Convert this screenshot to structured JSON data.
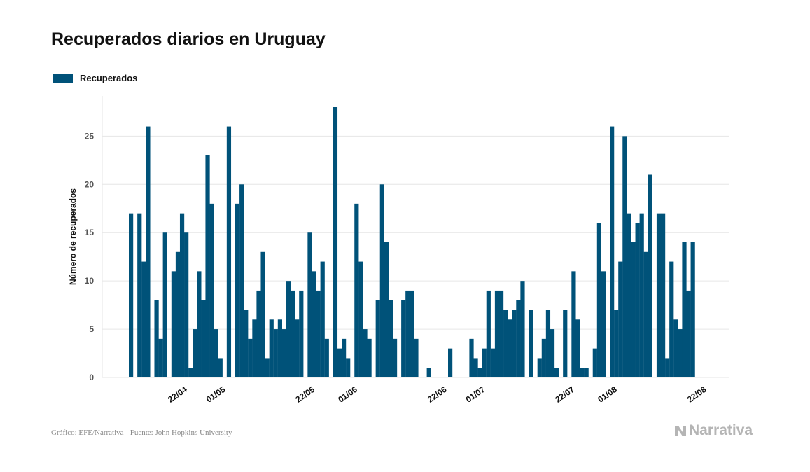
{
  "title": "Recuperados diarios en Uruguay",
  "legend": {
    "label": "Recuperados"
  },
  "footer": {
    "source": "Gráfico: EFE/Narrativa - Fuente: John Hopkins University",
    "brand": "Narrativa"
  },
  "colors": {
    "bar": "#005279",
    "grid": "#e6e6e6",
    "tick": "#555555",
    "axis": "#aaaaaa"
  },
  "chart_data": {
    "type": "bar",
    "ylabel": "Número de recuperados",
    "xlabel": "",
    "ylim": [
      0,
      28
    ],
    "yticks": [
      0,
      5,
      10,
      15,
      20,
      25
    ],
    "x_start": "2020-04-10",
    "xtick_labels": [
      {
        "label": "22/04",
        "index": 12
      },
      {
        "label": "01/05",
        "index": 21
      },
      {
        "label": "22/05",
        "index": 42
      },
      {
        "label": "01/06",
        "index": 52
      },
      {
        "label": "22/06",
        "index": 73
      },
      {
        "label": "01/07",
        "index": 82
      },
      {
        "label": "22/07",
        "index": 103
      },
      {
        "label": "01/08",
        "index": 113
      },
      {
        "label": "22/08",
        "index": 134
      }
    ],
    "values": [
      17,
      0,
      17,
      12,
      26,
      0,
      8,
      4,
      15,
      0,
      11,
      13,
      17,
      15,
      1,
      5,
      11,
      8,
      23,
      18,
      5,
      2,
      0,
      26,
      0,
      18,
      20,
      7,
      4,
      6,
      9,
      13,
      2,
      6,
      5,
      6,
      5,
      10,
      9,
      6,
      9,
      0,
      15,
      11,
      9,
      12,
      4,
      0,
      28,
      3,
      4,
      2,
      0,
      18,
      12,
      5,
      4,
      0,
      8,
      20,
      14,
      8,
      4,
      0,
      8,
      9,
      9,
      4,
      0,
      0,
      1,
      0,
      0,
      0,
      0,
      3,
      0,
      0,
      0,
      0,
      4,
      2,
      1,
      3,
      9,
      3,
      9,
      9,
      7,
      6,
      7,
      8,
      10,
      0,
      7,
      0,
      2,
      4,
      7,
      5,
      1,
      0,
      7,
      0,
      11,
      6,
      1,
      1,
      0,
      3,
      16,
      11,
      0,
      26,
      7,
      12,
      25,
      17,
      14,
      16,
      17,
      13,
      21,
      0,
      17,
      17,
      2,
      12,
      6,
      5,
      14,
      9,
      14
    ],
    "grid": true,
    "legend_position": "top-left"
  }
}
